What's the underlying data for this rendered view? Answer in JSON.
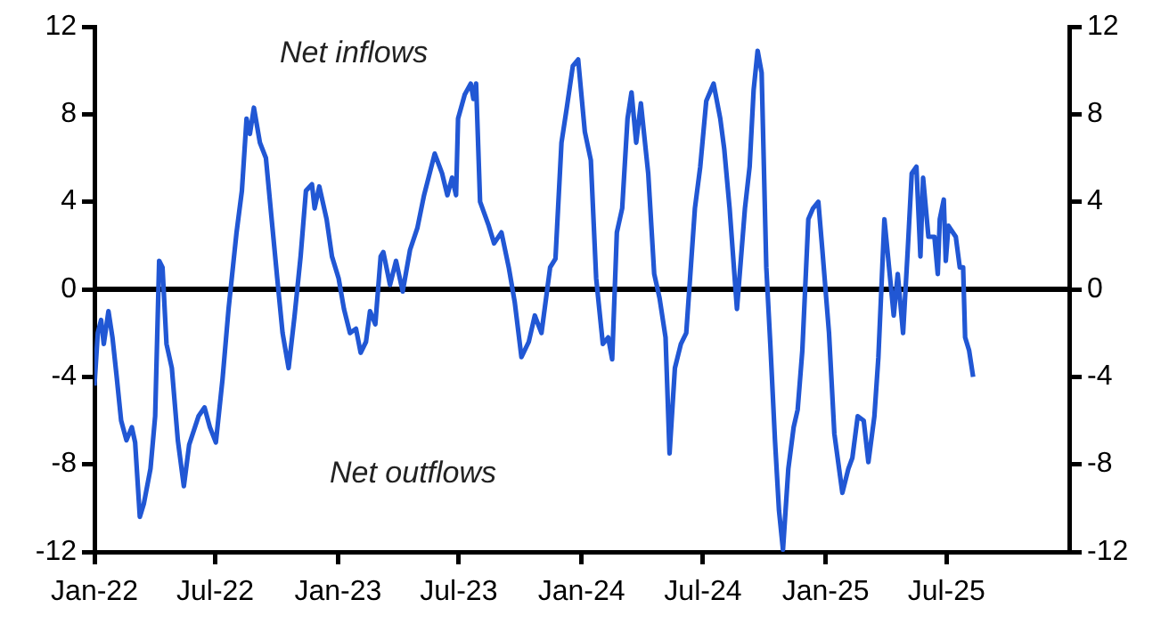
{
  "chart_data": {
    "type": "line",
    "x": [
      "2022-01-01",
      "2022-01-06",
      "2022-01-11",
      "2022-01-15",
      "2022-01-22",
      "2022-01-28",
      "2022-02-03",
      "2022-02-10",
      "2022-02-18",
      "2022-02-26",
      "2022-03-03",
      "2022-03-10",
      "2022-03-16",
      "2022-03-26",
      "2022-04-02",
      "2022-04-08",
      "2022-04-13",
      "2022-04-19",
      "2022-04-27",
      "2022-05-06",
      "2022-05-15",
      "2022-05-23",
      "2022-06-06",
      "2022-06-15",
      "2022-06-23",
      "2022-07-02",
      "2022-07-12",
      "2022-07-21",
      "2022-08-02",
      "2022-08-10",
      "2022-08-17",
      "2022-08-22",
      "2022-08-28",
      "2022-09-06",
      "2022-09-15",
      "2022-09-23",
      "2022-10-02",
      "2022-10-10",
      "2022-10-19",
      "2022-10-28",
      "2022-11-06",
      "2022-11-14",
      "2022-11-23",
      "2022-11-27",
      "2022-12-04",
      "2022-12-15",
      "2022-12-23",
      "2023-01-02",
      "2023-01-10",
      "2023-01-19",
      "2023-01-28",
      "2023-02-04",
      "2023-02-12",
      "2023-02-18",
      "2023-02-26",
      "2023-03-06",
      "2023-03-10",
      "2023-03-20",
      "2023-03-29",
      "2023-04-08",
      "2023-04-19",
      "2023-04-30",
      "2023-05-10",
      "2023-05-26",
      "2023-06-06",
      "2023-06-14",
      "2023-06-21",
      "2023-06-27",
      "2023-06-30",
      "2023-07-10",
      "2023-07-19",
      "2023-07-23",
      "2023-07-27",
      "2023-08-02",
      "2023-08-15",
      "2023-08-23",
      "2023-09-03",
      "2023-09-14",
      "2023-09-23",
      "2023-10-03",
      "2023-10-14",
      "2023-10-23",
      "2023-11-02",
      "2023-11-15",
      "2023-11-23",
      "2023-12-02",
      "2023-12-10",
      "2023-12-19",
      "2023-12-27",
      "2024-01-06",
      "2024-01-15",
      "2024-01-23",
      "2024-02-02",
      "2024-02-10",
      "2024-02-16",
      "2024-02-23",
      "2024-03-02",
      "2024-03-10",
      "2024-03-16",
      "2024-03-23",
      "2024-03-30",
      "2024-04-10",
      "2024-04-19",
      "2024-04-27",
      "2024-05-06",
      "2024-05-12",
      "2024-05-20",
      "2024-05-29",
      "2024-06-06",
      "2024-06-19",
      "2024-06-27",
      "2024-07-06",
      "2024-07-17",
      "2024-07-27",
      "2024-08-02",
      "2024-08-10",
      "2024-08-21",
      "2024-09-02",
      "2024-09-09",
      "2024-09-15",
      "2024-09-21",
      "2024-09-27",
      "2024-10-04",
      "2024-10-10",
      "2024-10-17",
      "2024-10-23",
      "2024-10-29",
      "2024-11-06",
      "2024-11-14",
      "2024-11-20",
      "2024-11-27",
      "2024-12-06",
      "2024-12-13",
      "2024-12-21",
      "2024-12-27",
      "2025-01-06",
      "2025-01-14",
      "2025-01-26",
      "2025-02-04",
      "2025-02-10",
      "2025-02-18",
      "2025-02-27",
      "2025-03-06",
      "2025-03-15",
      "2025-03-21",
      "2025-03-30",
      "2025-04-06",
      "2025-04-13",
      "2025-04-19",
      "2025-04-27",
      "2025-05-04",
      "2025-05-10",
      "2025-05-17",
      "2025-05-23",
      "2025-05-27",
      "2025-06-04",
      "2025-06-13",
      "2025-06-18",
      "2025-06-21",
      "2025-06-27",
      "2025-06-30",
      "2025-07-04",
      "2025-07-15",
      "2025-07-21",
      "2025-07-26",
      "2025-07-29",
      "2025-08-04",
      "2025-08-10"
    ],
    "series": [
      {
        "color": "#2157d4",
        "values": [
          -4.4,
          -2.0,
          -1.4,
          -2.5,
          -1.0,
          -2.2,
          -3.9,
          -6.0,
          -6.9,
          -6.3,
          -7.0,
          -10.4,
          -9.8,
          -8.2,
          -5.8,
          1.3,
          1.0,
          -2.5,
          -3.6,
          -6.9,
          -9.0,
          -7.1,
          -5.8,
          -5.4,
          -6.3,
          -7.0,
          -4.1,
          -0.9,
          2.6,
          4.5,
          7.8,
          7.1,
          8.3,
          6.7,
          6.0,
          3.4,
          0.5,
          -2.0,
          -3.6,
          -1.2,
          1.5,
          4.5,
          4.8,
          3.7,
          4.7,
          3.2,
          1.5,
          0.5,
          -0.9,
          -2.0,
          -1.8,
          -2.9,
          -2.4,
          -1.0,
          -1.6,
          1.5,
          1.7,
          0.2,
          1.3,
          -0.1,
          1.8,
          2.8,
          4.3,
          6.2,
          5.3,
          4.3,
          5.1,
          4.3,
          7.8,
          8.9,
          9.4,
          8.7,
          9.4,
          4.0,
          2.9,
          2.1,
          2.6,
          1.0,
          -0.6,
          -3.1,
          -2.4,
          -1.2,
          -2.0,
          1.0,
          1.4,
          6.7,
          8.3,
          10.2,
          10.5,
          7.2,
          5.9,
          0.5,
          -2.5,
          -2.2,
          -3.2,
          2.6,
          3.7,
          7.8,
          9.0,
          6.7,
          8.5,
          5.3,
          0.7,
          -0.4,
          -2.2,
          -7.5,
          -3.6,
          -2.5,
          -2.0,
          3.7,
          5.6,
          8.6,
          9.4,
          7.8,
          6.4,
          3.7,
          -0.9,
          3.7,
          5.6,
          9.1,
          10.9,
          9.9,
          1.0,
          -2.5,
          -6.9,
          -10.1,
          -11.9,
          -8.2,
          -6.3,
          -5.5,
          -2.8,
          3.2,
          3.7,
          4.0,
          1.8,
          -2.0,
          -6.6,
          -9.3,
          -8.2,
          -7.7,
          -5.8,
          -6.0,
          -7.9,
          -5.8,
          -3.1,
          3.2,
          1.0,
          -1.2,
          0.7,
          -2.0,
          1.8,
          5.3,
          5.6,
          1.5,
          5.1,
          2.4,
          2.4,
          0.7,
          3.2,
          4.1,
          1.3,
          2.9,
          2.4,
          1.0,
          1.0,
          -2.2,
          -2.8,
          -4.0
        ]
      }
    ],
    "xlim": [
      "2022-01-01",
      "2026-01-01"
    ],
    "xticks": [
      {
        "value": "2022-01-01",
        "label": "Jan-22"
      },
      {
        "value": "2022-07-01",
        "label": "Jul-22"
      },
      {
        "value": "2023-01-01",
        "label": "Jan-23"
      },
      {
        "value": "2023-07-01",
        "label": "Jul-23"
      },
      {
        "value": "2024-01-01",
        "label": "Jan-24"
      },
      {
        "value": "2024-07-01",
        "label": "Jul-24"
      },
      {
        "value": "2025-01-01",
        "label": "Jan-25"
      },
      {
        "value": "2025-07-01",
        "label": "Jul-25"
      }
    ],
    "ylim": [
      -12,
      12
    ],
    "yticks": [
      -12,
      -8,
      -4,
      0,
      4,
      8,
      12
    ],
    "y2lim": [
      -12,
      12
    ],
    "y2ticks": [
      -12,
      -8,
      -4,
      0,
      4,
      8,
      12
    ],
    "ref_lines": [
      {
        "axis": "y",
        "value": 0,
        "color": "#000000"
      }
    ],
    "annotations": [
      "Net inflows",
      "Net outflows"
    ],
    "grid": false,
    "legend": false,
    "marker": "none",
    "line_style": "solid"
  }
}
